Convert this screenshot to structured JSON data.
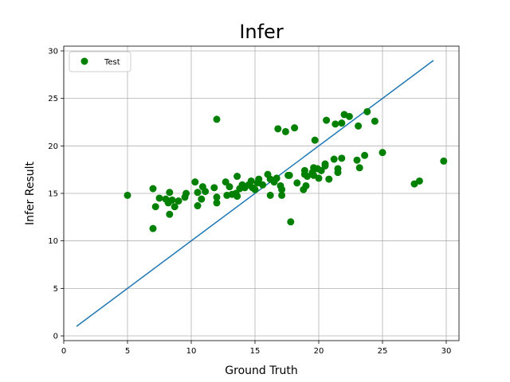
{
  "chart_data": {
    "type": "scatter",
    "title": "Infer",
    "xlabel": "Ground Truth",
    "ylabel": "Infer Result",
    "xlim": [
      0,
      31
    ],
    "ylim": [
      -0.5,
      30.5
    ],
    "xticks": [
      0,
      5,
      10,
      15,
      20,
      25,
      30
    ],
    "yticks": [
      0,
      5,
      10,
      15,
      20,
      25,
      30
    ],
    "grid": true,
    "legend_position": "top-left",
    "series": [
      {
        "name": "Test",
        "kind": "scatter",
        "color": "#008000",
        "points": [
          [
            5.0,
            14.8
          ],
          [
            7.0,
            11.3
          ],
          [
            7.0,
            15.5
          ],
          [
            7.2,
            13.6
          ],
          [
            7.5,
            14.5
          ],
          [
            8.0,
            14.4
          ],
          [
            8.2,
            14.0
          ],
          [
            8.3,
            15.1
          ],
          [
            8.3,
            12.8
          ],
          [
            8.5,
            14.3
          ],
          [
            8.7,
            13.6
          ],
          [
            9.0,
            14.2
          ],
          [
            9.5,
            14.6
          ],
          [
            9.6,
            15.0
          ],
          [
            10.3,
            16.2
          ],
          [
            10.5,
            13.7
          ],
          [
            10.5,
            15.1
          ],
          [
            10.8,
            14.4
          ],
          [
            10.9,
            15.7
          ],
          [
            11.1,
            15.2
          ],
          [
            11.8,
            15.6
          ],
          [
            12.0,
            14.6
          ],
          [
            12.0,
            14.0
          ],
          [
            12.0,
            22.8
          ],
          [
            12.7,
            16.2
          ],
          [
            12.8,
            14.8
          ],
          [
            13.0,
            15.7
          ],
          [
            13.2,
            14.9
          ],
          [
            13.5,
            15.0
          ],
          [
            13.6,
            14.7
          ],
          [
            13.6,
            16.8
          ],
          [
            13.8,
            15.5
          ],
          [
            14.0,
            15.9
          ],
          [
            14.2,
            15.6
          ],
          [
            14.5,
            15.9
          ],
          [
            14.7,
            16.3
          ],
          [
            14.8,
            15.6
          ],
          [
            15.0,
            15.4
          ],
          [
            15.2,
            16.1
          ],
          [
            15.3,
            16.5
          ],
          [
            15.6,
            15.9
          ],
          [
            16.0,
            17.0
          ],
          [
            16.2,
            16.5
          ],
          [
            16.2,
            14.8
          ],
          [
            16.5,
            16.2
          ],
          [
            16.7,
            16.6
          ],
          [
            16.8,
            21.8
          ],
          [
            17.0,
            15.8
          ],
          [
            17.1,
            14.8
          ],
          [
            17.1,
            15.4
          ],
          [
            17.4,
            21.5
          ],
          [
            17.6,
            16.9
          ],
          [
            17.7,
            16.9
          ],
          [
            17.8,
            12.0
          ],
          [
            18.1,
            21.9
          ],
          [
            18.3,
            16.1
          ],
          [
            18.8,
            15.4
          ],
          [
            18.9,
            17.0
          ],
          [
            18.9,
            17.4
          ],
          [
            19.0,
            15.8
          ],
          [
            19.1,
            16.8
          ],
          [
            19.5,
            17.2
          ],
          [
            19.6,
            16.9
          ],
          [
            19.6,
            17.7
          ],
          [
            19.7,
            20.6
          ],
          [
            19.9,
            17.6
          ],
          [
            20.0,
            16.6
          ],
          [
            20.2,
            17.4
          ],
          [
            20.5,
            17.9
          ],
          [
            20.5,
            18.1
          ],
          [
            20.6,
            22.7
          ],
          [
            20.8,
            16.5
          ],
          [
            21.2,
            18.6
          ],
          [
            21.3,
            22.3
          ],
          [
            21.5,
            17.2
          ],
          [
            21.5,
            17.6
          ],
          [
            21.8,
            22.4
          ],
          [
            21.8,
            18.7
          ],
          [
            22.0,
            23.3
          ],
          [
            22.4,
            23.1
          ],
          [
            23.0,
            18.5
          ],
          [
            23.1,
            22.1
          ],
          [
            23.2,
            17.7
          ],
          [
            23.6,
            19.0
          ],
          [
            23.8,
            23.6
          ],
          [
            24.4,
            22.6
          ],
          [
            25.0,
            19.3
          ],
          [
            27.5,
            16.0
          ],
          [
            27.9,
            16.3
          ],
          [
            29.8,
            18.4
          ]
        ]
      },
      {
        "name": "",
        "kind": "line",
        "color": "#1f77b4",
        "points": [
          [
            1,
            1
          ],
          [
            29,
            29
          ]
        ]
      }
    ]
  }
}
